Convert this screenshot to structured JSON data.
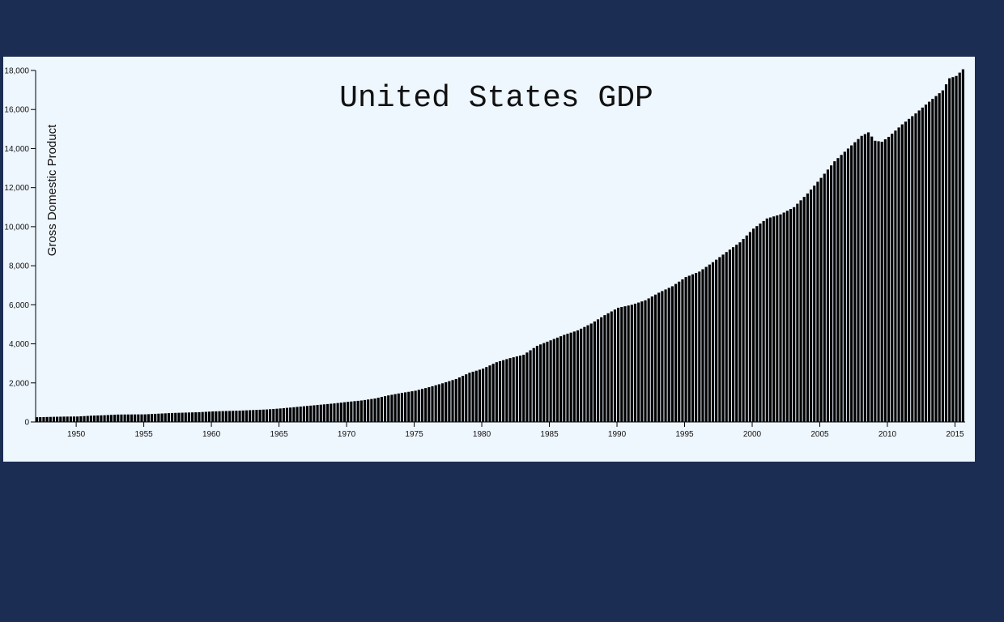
{
  "colors": {
    "background": "#1b2d52",
    "panel": "#eef6fe",
    "bar": "#000000",
    "bar_separator": "#ffffff"
  },
  "chart_data": {
    "type": "bar",
    "title": "United States GDP",
    "ylabel": "Gross Domestic Product",
    "xlabel": "",
    "xlim": [
      1947.0,
      2015.75
    ],
    "ylim": [
      0,
      18000
    ],
    "x_ticks": [
      "1950",
      "1955",
      "1960",
      "1965",
      "1970",
      "1975",
      "1980",
      "1985",
      "1990",
      "1995",
      "2000",
      "2005",
      "2010",
      "2015"
    ],
    "y_ticks": [
      "0",
      "2,000",
      "4,000",
      "6,000",
      "8,000",
      "10,000",
      "12,000",
      "14,000",
      "16,000",
      "18,000"
    ],
    "grid": false,
    "legend": "none",
    "bar_period": "quarterly",
    "anchor_points": [
      [
        1947.0,
        243
      ],
      [
        1949.0,
        275
      ],
      [
        1950.0,
        280
      ],
      [
        1951.0,
        320
      ],
      [
        1952.0,
        345
      ],
      [
        1953.0,
        380
      ],
      [
        1955.0,
        390
      ],
      [
        1957.0,
        460
      ],
      [
        1959.0,
        500
      ],
      [
        1960.0,
        540
      ],
      [
        1962.0,
        580
      ],
      [
        1964.0,
        640
      ],
      [
        1965.0,
        690
      ],
      [
        1967.0,
        820
      ],
      [
        1969.0,
        950
      ],
      [
        1970.0,
        1030
      ],
      [
        1971.0,
        1100
      ],
      [
        1972.0,
        1200
      ],
      [
        1973.0,
        1360
      ],
      [
        1974.0,
        1490
      ],
      [
        1975.0,
        1600
      ],
      [
        1976.0,
        1780
      ],
      [
        1977.0,
        1980
      ],
      [
        1978.0,
        2200
      ],
      [
        1979.0,
        2520
      ],
      [
        1980.0,
        2730
      ],
      [
        1981.0,
        3060
      ],
      [
        1982.0,
        3270
      ],
      [
        1983.0,
        3440
      ],
      [
        1984.0,
        3900
      ],
      [
        1985.0,
        4180
      ],
      [
        1986.0,
        4460
      ],
      [
        1987.0,
        4690
      ],
      [
        1988.0,
        5040
      ],
      [
        1989.0,
        5470
      ],
      [
        1990.0,
        5850
      ],
      [
        1991.0,
        6000
      ],
      [
        1992.0,
        6230
      ],
      [
        1993.0,
        6620
      ],
      [
        1994.0,
        6950
      ],
      [
        1995.0,
        7420
      ],
      [
        1996.0,
        7700
      ],
      [
        1997.0,
        8180
      ],
      [
        1998.0,
        8700
      ],
      [
        1999.0,
        9200
      ],
      [
        2000.0,
        9900
      ],
      [
        2001.0,
        10420
      ],
      [
        2002.0,
        10630
      ],
      [
        2003.0,
        11000
      ],
      [
        2004.0,
        11700
      ],
      [
        2005.0,
        12500
      ],
      [
        2006.0,
        13350
      ],
      [
        2007.0,
        14000
      ],
      [
        2008.0,
        14650
      ],
      [
        2008.5,
        14830
      ],
      [
        2009.0,
        14400
      ],
      [
        2009.5,
        14350
      ],
      [
        2010.0,
        14600
      ],
      [
        2011.0,
        15240
      ],
      [
        2012.0,
        15800
      ],
      [
        2013.0,
        16400
      ],
      [
        2014.0,
        16980
      ],
      [
        2014.5,
        17600
      ],
      [
        2015.0,
        17720
      ],
      [
        2015.5,
        18060
      ]
    ]
  }
}
